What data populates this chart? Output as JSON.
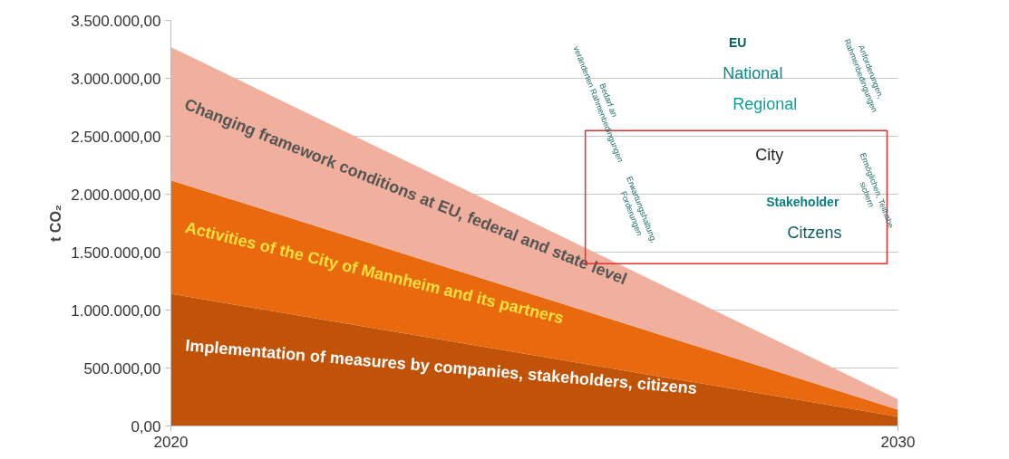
{
  "chart_data": {
    "type": "area",
    "stacked": true,
    "ylabel": "t CO₂",
    "x": [
      2020,
      2030
    ],
    "xlim": [
      2020,
      2030
    ],
    "xticks": [
      2020,
      2030
    ],
    "ylim": [
      0,
      3500000
    ],
    "yticks": [
      {
        "value": 0,
        "label": "0,00"
      },
      {
        "value": 500000,
        "label": "500.000,00"
      },
      {
        "value": 1000000,
        "label": "1.000.000,00"
      },
      {
        "value": 1500000,
        "label": "1.500.000,00"
      },
      {
        "value": 2000000,
        "label": "2.000.000,00"
      },
      {
        "value": 2500000,
        "label": "2.500.000,00"
      },
      {
        "value": 3000000,
        "label": "3.000.000,00"
      },
      {
        "value": 3500000,
        "label": "3.500.000,00"
      }
    ],
    "grid": "y",
    "series": [
      {
        "name": "Implementation of measures by companies, stakeholders, citizens",
        "color": "#c05308",
        "values": [
          1140000,
          80000
        ]
      },
      {
        "name": "Activities of the City of Mannheim and its partners",
        "color": "#e8690e",
        "values": [
          980000,
          60000
        ]
      },
      {
        "name": "Changing framework conditions at EU, federal and state level",
        "color": "#f0b09d",
        "values": [
          1150000,
          90000
        ]
      }
    ],
    "annotations": [
      "EU",
      "National",
      "Regional",
      "City",
      "Stakeholder",
      "Citzens",
      "Anforderungen, Rahmenbedingungen",
      "Bedarf an veränderten Rahmenbedingungen",
      "Ermöglichen, Teilhabe sichern",
      "Erwartungshaltung, Forderungen"
    ]
  }
}
